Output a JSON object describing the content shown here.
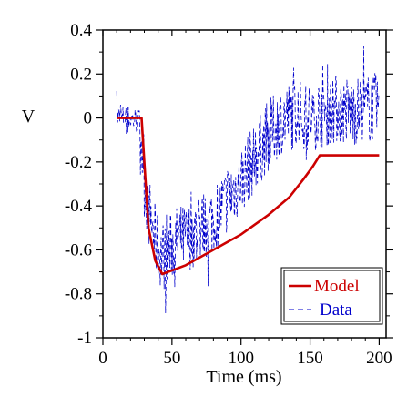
{
  "chart_data": {
    "type": "line",
    "xlabel": "Time (ms)",
    "ylabel": "V",
    "xlim": [
      0,
      205
    ],
    "ylim": [
      -1,
      0.4
    ],
    "x_ticks": [
      0,
      50,
      100,
      150,
      200
    ],
    "x_tick_labels": [
      "0",
      "50",
      "100",
      "150",
      "200"
    ],
    "y_ticks": [
      0.4,
      0.2,
      0,
      -0.2,
      -0.4,
      -0.6,
      -0.8,
      -1
    ],
    "y_tick_labels": [
      "0.4",
      "0.2",
      "0",
      "-0.2",
      "-0.4",
      "-0.6",
      "-0.8",
      "-1"
    ],
    "legend_position": "bottom-right",
    "grid": false,
    "series": [
      {
        "name": "Model",
        "color": "#cc0000",
        "style": "solid",
        "x": [
          10,
          28,
          30,
          33,
          38,
          43,
          60,
          80,
          100,
          120,
          135,
          145,
          152,
          157,
          200
        ],
        "y": [
          0,
          0,
          -0.2,
          -0.5,
          -0.65,
          -0.71,
          -0.67,
          -0.6,
          -0.53,
          -0.44,
          -0.36,
          -0.28,
          -0.22,
          -0.17,
          -0.17
        ]
      },
      {
        "name": "Data",
        "color": "#0000cc",
        "style": "dashed-noisy",
        "x": [
          10,
          20,
          27,
          30,
          35,
          40,
          45,
          50,
          55,
          60,
          70,
          80,
          90,
          100,
          110,
          120,
          130,
          140,
          150,
          160,
          170,
          180,
          190,
          200
        ],
        "y": [
          0,
          0,
          -0.02,
          -0.3,
          -0.48,
          -0.6,
          -0.63,
          -0.58,
          -0.55,
          -0.55,
          -0.5,
          -0.46,
          -0.37,
          -0.28,
          -0.18,
          -0.08,
          0.0,
          0.02,
          0.0,
          0.03,
          0.04,
          0.03,
          0.04,
          0.05
        ]
      }
    ]
  }
}
